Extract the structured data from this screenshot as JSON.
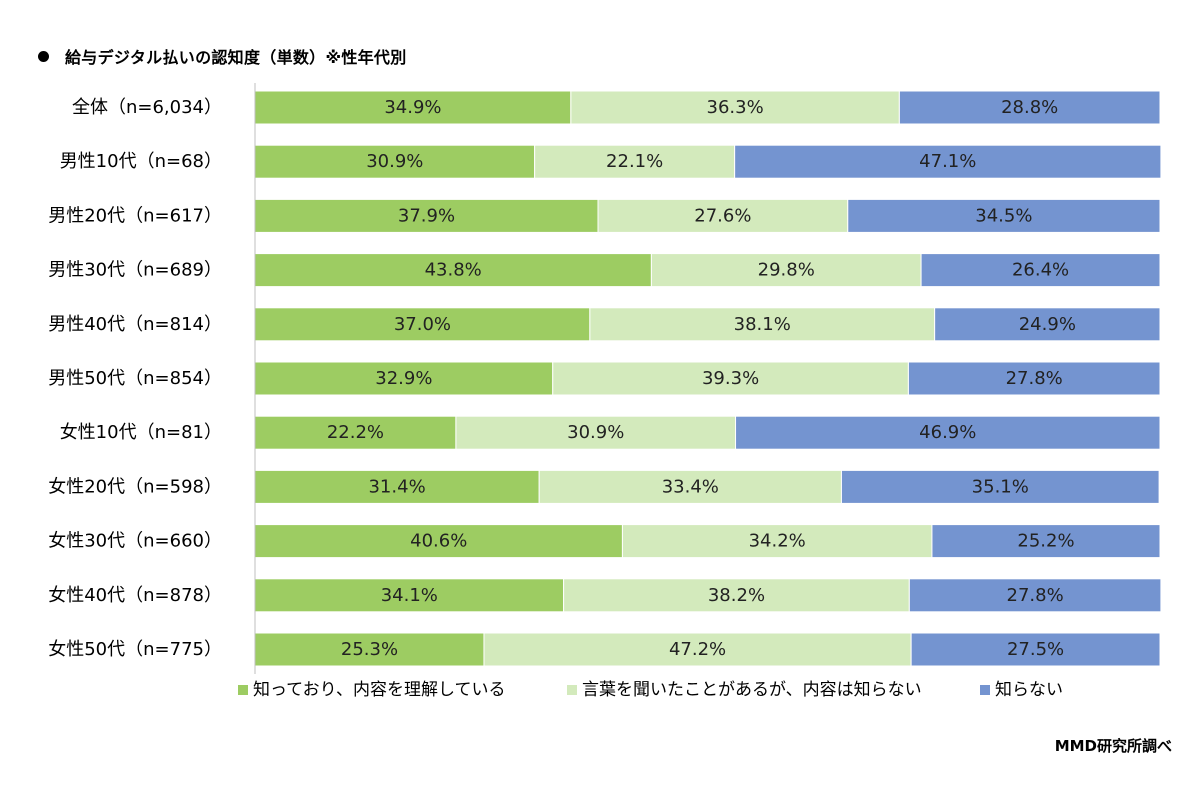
{
  "title_bullet": "●",
  "chart_data": {
    "type": "bar",
    "orientation": "horizontal",
    "stacked": true,
    "title": "給与デジタル払いの認知度（単数）※性年代別",
    "xlim": [
      0,
      100
    ],
    "unit": "%",
    "grid": false,
    "legend_position": "bottom",
    "categories": [
      "全体（n=6,034）",
      "男性10代（n=68）",
      "男性20代（n=617）",
      "男性30代（n=689）",
      "男性40代（n=814）",
      "男性50代（n=854）",
      "女性10代（n=81）",
      "女性20代（n=598）",
      "女性30代（n=660）",
      "女性40代（n=878）",
      "女性50代（n=775）"
    ],
    "series": [
      {
        "name": "知っており、内容を理解している",
        "color": "#9dcc62",
        "values": [
          34.9,
          30.9,
          37.9,
          43.8,
          37.0,
          32.9,
          22.2,
          31.4,
          40.6,
          34.1,
          25.3
        ],
        "labels": [
          "34.9%",
          "30.9%",
          "37.9%",
          "43.8%",
          "37.0%",
          "32.9%",
          "22.2%",
          "31.4%",
          "40.6%",
          "34.1%",
          "25.3%"
        ]
      },
      {
        "name": "言葉を聞いたことがあるが、内容は知らない",
        "color": "#d3eabc",
        "values": [
          36.3,
          22.1,
          27.6,
          29.8,
          38.1,
          39.3,
          30.9,
          33.4,
          34.2,
          38.2,
          47.2
        ],
        "labels": [
          "36.3%",
          "22.1%",
          "27.6%",
          "29.8%",
          "38.1%",
          "39.3%",
          "30.9%",
          "33.4%",
          "34.2%",
          "38.2%",
          "47.2%"
        ]
      },
      {
        "name": "知らない",
        "color": "#7494d0",
        "values": [
          28.8,
          47.1,
          34.5,
          26.4,
          24.9,
          27.8,
          46.9,
          35.1,
          25.2,
          27.8,
          27.5
        ],
        "labels": [
          "28.8%",
          "47.1%",
          "34.5%",
          "26.4%",
          "24.9%",
          "27.8%",
          "46.9%",
          "35.1%",
          "25.2%",
          "27.8%",
          "27.5%"
        ]
      }
    ]
  },
  "source_note": "MMD研究所調べ"
}
